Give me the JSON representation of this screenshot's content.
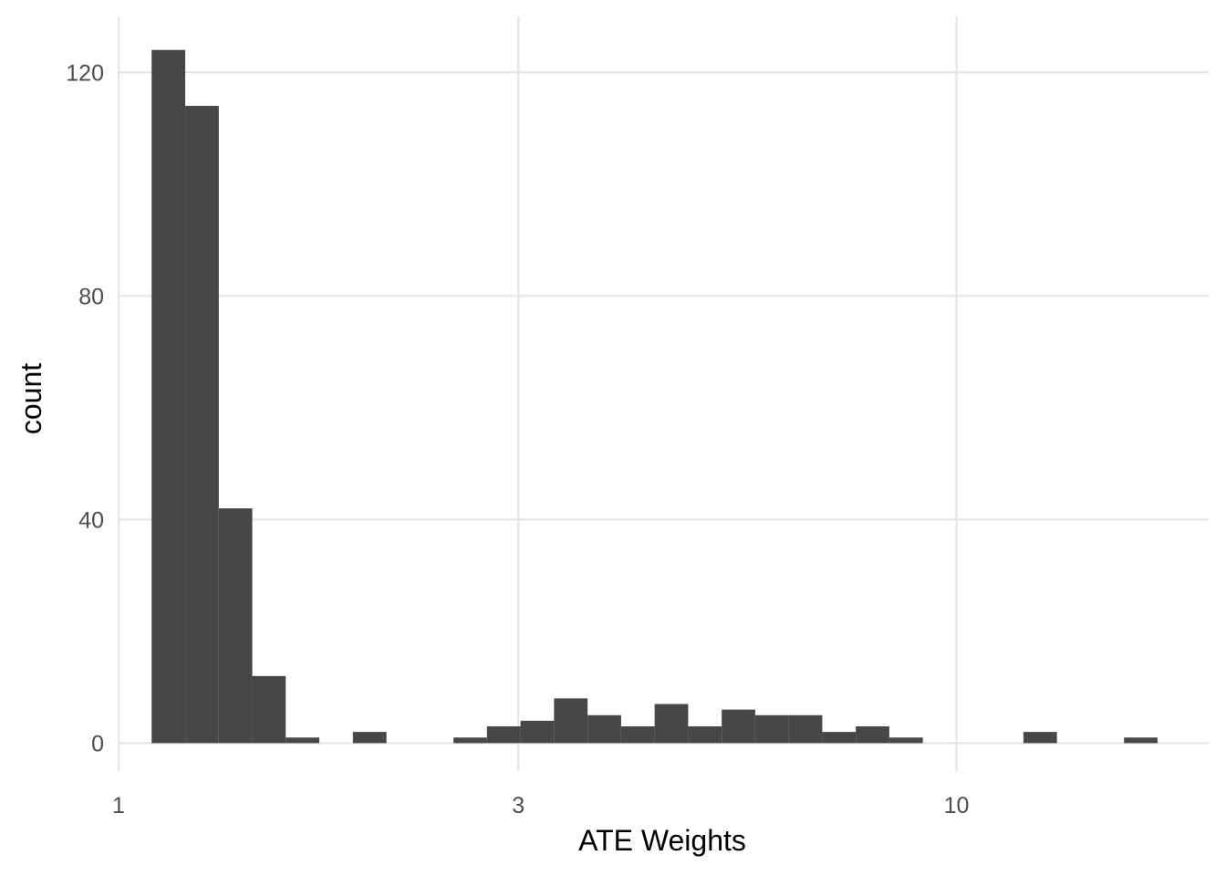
{
  "chart_data": {
    "type": "bar",
    "xlabel": "ATE Weights",
    "ylabel": "count",
    "x_scale": "log10",
    "xlim": [
      1,
      20
    ],
    "ylim": [
      -5,
      130
    ],
    "x_ticks": [
      1,
      3,
      10
    ],
    "x_tick_labels": [
      "1",
      "3",
      "10"
    ],
    "y_ticks": [
      0,
      40,
      80,
      120
    ],
    "y_tick_labels": [
      "0",
      "40",
      "80",
      "120"
    ],
    "grid": true,
    "bar_color": "#474747",
    "bins": [
      {
        "x0": 1.095,
        "x1": 1.201,
        "count": 124
      },
      {
        "x0": 1.201,
        "x1": 1.317,
        "count": 114
      },
      {
        "x0": 1.317,
        "x1": 1.444,
        "count": 42
      },
      {
        "x0": 1.444,
        "x1": 1.583,
        "count": 12
      },
      {
        "x0": 1.583,
        "x1": 1.736,
        "count": 1
      },
      {
        "x0": 1.736,
        "x1": 1.904,
        "count": 0
      },
      {
        "x0": 1.904,
        "x1": 2.088,
        "count": 2
      },
      {
        "x0": 2.088,
        "x1": 2.289,
        "count": 0
      },
      {
        "x0": 2.289,
        "x1": 2.51,
        "count": 0
      },
      {
        "x0": 2.51,
        "x1": 2.752,
        "count": 1
      },
      {
        "x0": 2.752,
        "x1": 3.018,
        "count": 3
      },
      {
        "x0": 3.018,
        "x1": 3.309,
        "count": 4
      },
      {
        "x0": 3.309,
        "x1": 3.629,
        "count": 8
      },
      {
        "x0": 3.629,
        "x1": 3.979,
        "count": 5
      },
      {
        "x0": 3.979,
        "x1": 4.363,
        "count": 3
      },
      {
        "x0": 4.363,
        "x1": 4.784,
        "count": 7
      },
      {
        "x0": 4.784,
        "x1": 5.246,
        "count": 3
      },
      {
        "x0": 5.246,
        "x1": 5.752,
        "count": 6
      },
      {
        "x0": 5.752,
        "x1": 6.307,
        "count": 5
      },
      {
        "x0": 6.307,
        "x1": 6.916,
        "count": 5
      },
      {
        "x0": 6.916,
        "x1": 7.583,
        "count": 2
      },
      {
        "x0": 7.583,
        "x1": 8.315,
        "count": 3
      },
      {
        "x0": 8.315,
        "x1": 9.118,
        "count": 1
      },
      {
        "x0": 9.118,
        "x1": 9.998,
        "count": 0
      },
      {
        "x0": 9.998,
        "x1": 10.963,
        "count": 0
      },
      {
        "x0": 10.963,
        "x1": 12.021,
        "count": 0
      },
      {
        "x0": 12.021,
        "x1": 13.181,
        "count": 2
      },
      {
        "x0": 13.181,
        "x1": 14.453,
        "count": 0
      },
      {
        "x0": 14.453,
        "x1": 15.848,
        "count": 0
      },
      {
        "x0": 15.848,
        "x1": 17.378,
        "count": 1
      }
    ]
  }
}
